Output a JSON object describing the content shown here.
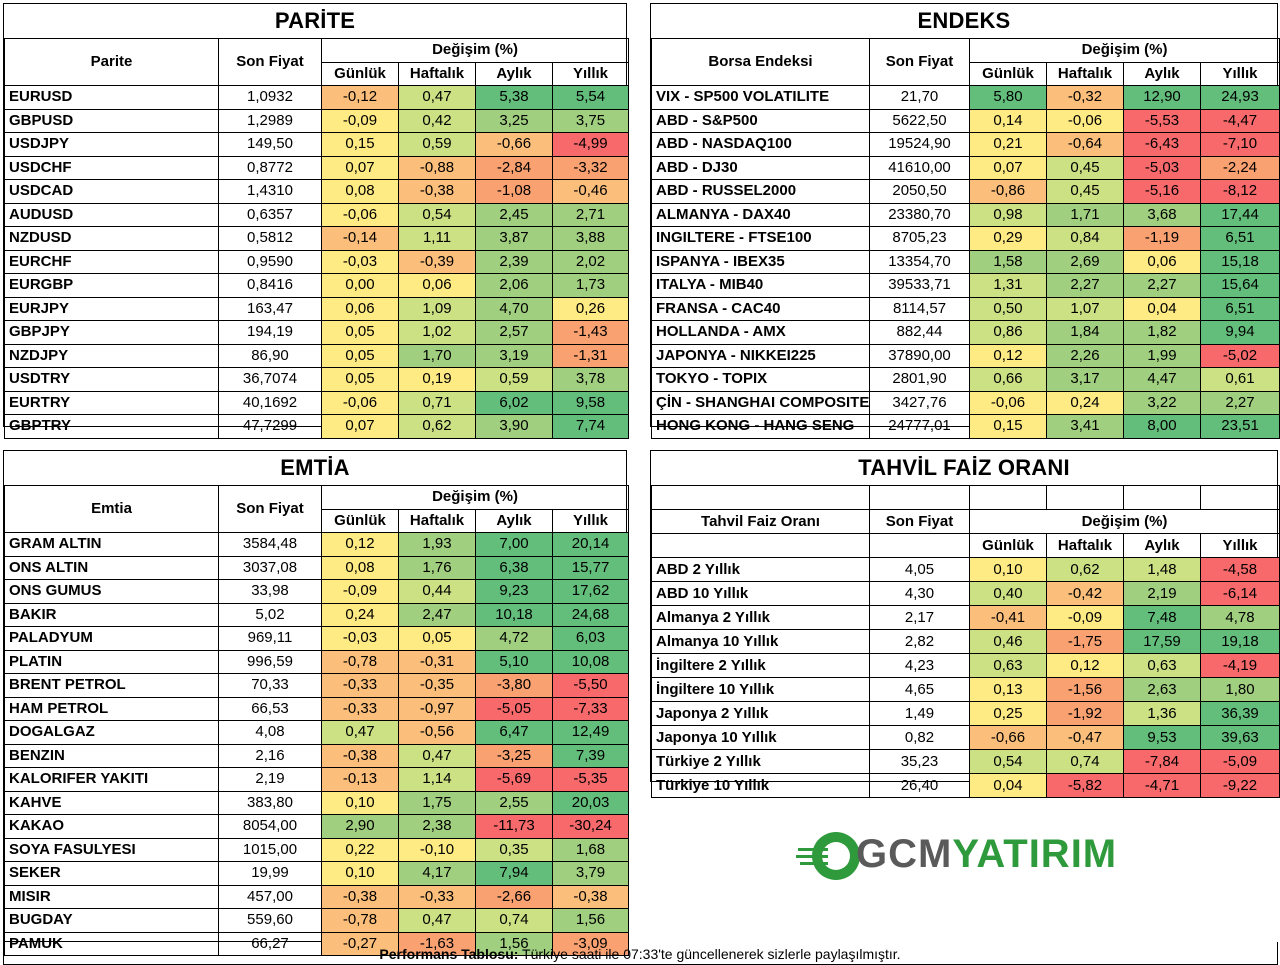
{
  "colors": {
    "deep_green": "#63be7b",
    "green": "#a0cf7f",
    "light_green": "#cce084",
    "yellow": "#ffeb84",
    "orange": "#fcbf7b",
    "orange_red": "#f9a170",
    "red": "#f8696b"
  },
  "parite": {
    "title": "PARİTE",
    "col_name": "Parite",
    "col_price": "Son Fiyat",
    "col_change": "Değişim (%)",
    "col_daily": "Günlük",
    "col_weekly": "Haftalık",
    "col_monthly": "Aylık",
    "col_yearly": "Yıllık",
    "rows": [
      {
        "name": "EURUSD",
        "price": "1,0932",
        "d": "-0,12",
        "w": "0,47",
        "m": "5,38",
        "y": "5,54"
      },
      {
        "name": "GBPUSD",
        "price": "1,2989",
        "d": "-0,09",
        "w": "0,42",
        "m": "3,25",
        "y": "3,75"
      },
      {
        "name": "USDJPY",
        "price": "149,50",
        "d": "0,15",
        "w": "0,59",
        "m": "-0,66",
        "y": "-4,99"
      },
      {
        "name": "USDCHF",
        "price": "0,8772",
        "d": "0,07",
        "w": "-0,88",
        "m": "-2,84",
        "y": "-3,32"
      },
      {
        "name": "USDCAD",
        "price": "1,4310",
        "d": "0,08",
        "w": "-0,38",
        "m": "-1,08",
        "y": "-0,46"
      },
      {
        "name": "AUDUSD",
        "price": "0,6357",
        "d": "-0,06",
        "w": "0,54",
        "m": "2,45",
        "y": "2,71"
      },
      {
        "name": "NZDUSD",
        "price": "0,5812",
        "d": "-0,14",
        "w": "1,11",
        "m": "3,87",
        "y": "3,88"
      },
      {
        "name": "EURCHF",
        "price": "0,9590",
        "d": "-0,03",
        "w": "-0,39",
        "m": "2,39",
        "y": "2,02"
      },
      {
        "name": "EURGBP",
        "price": "0,8416",
        "d": "0,00",
        "w": "0,06",
        "m": "2,06",
        "y": "1,73"
      },
      {
        "name": "EURJPY",
        "price": "163,47",
        "d": "0,06",
        "w": "1,09",
        "m": "4,70",
        "y": "0,26"
      },
      {
        "name": "GBPJPY",
        "price": "194,19",
        "d": "0,05",
        "w": "1,02",
        "m": "2,57",
        "y": "-1,43"
      },
      {
        "name": "NZDJPY",
        "price": "86,90",
        "d": "0,05",
        "w": "1,70",
        "m": "3,19",
        "y": "-1,31"
      },
      {
        "name": "USDTRY",
        "price": "36,7074",
        "d": "0,05",
        "w": "0,19",
        "m": "0,59",
        "y": "3,78"
      },
      {
        "name": "EURTRY",
        "price": "40,1692",
        "d": "-0,06",
        "w": "0,71",
        "m": "6,02",
        "y": "9,58"
      },
      {
        "name": "GBPTRY",
        "price": "47,7299",
        "d": "0,07",
        "w": "0,62",
        "m": "3,90",
        "y": "7,74"
      }
    ]
  },
  "endeks": {
    "title": "ENDEKS",
    "col_name": "Borsa Endeksi",
    "col_price": "Son Fiyat",
    "col_change": "Değişim (%)",
    "col_daily": "Günlük",
    "col_weekly": "Haftalık",
    "col_monthly": "Aylık",
    "col_yearly": "Yıllık",
    "rows": [
      {
        "name": "VIX  - SP500 VOLATILITE",
        "price": "21,70",
        "d": "5,80",
        "w": "-0,32",
        "m": "12,90",
        "y": "24,93"
      },
      {
        "name": "ABD - S&P500",
        "price": "5622,50",
        "d": "0,14",
        "w": "-0,06",
        "m": "-5,53",
        "y": "-4,47"
      },
      {
        "name": "ABD - NASDAQ100",
        "price": "19524,90",
        "d": "0,21",
        "w": "-0,64",
        "m": "-6,43",
        "y": "-7,10"
      },
      {
        "name": "ABD - DJ30",
        "price": "41610,00",
        "d": "0,07",
        "w": "0,45",
        "m": "-5,03",
        "y": "-2,24"
      },
      {
        "name": "ABD - RUSSEL2000",
        "price": "2050,50",
        "d": "-0,86",
        "w": "0,45",
        "m": "-5,16",
        "y": "-8,12"
      },
      {
        "name": "ALMANYA - DAX40",
        "price": "23380,70",
        "d": "0,98",
        "w": "1,71",
        "m": "3,68",
        "y": "17,44"
      },
      {
        "name": "INGILTERE - FTSE100",
        "price": "8705,23",
        "d": "0,29",
        "w": "0,84",
        "m": "-1,19",
        "y": "6,51"
      },
      {
        "name": "ISPANYA - IBEX35",
        "price": "13354,70",
        "d": "1,58",
        "w": "2,69",
        "m": "0,06",
        "y": "15,18"
      },
      {
        "name": "ITALYA - MIB40",
        "price": "39533,71",
        "d": "1,31",
        "w": "2,27",
        "m": "2,27",
        "y": "15,64"
      },
      {
        "name": "FRANSA - CAC40",
        "price": "8114,57",
        "d": "0,50",
        "w": "1,07",
        "m": "0,04",
        "y": "6,51"
      },
      {
        "name": "HOLLANDA - AMX",
        "price": "882,44",
        "d": "0,86",
        "w": "1,84",
        "m": "1,82",
        "y": "9,94"
      },
      {
        "name": "JAPONYA - NIKKEI225",
        "price": "37890,00",
        "d": "0,12",
        "w": "2,26",
        "m": "1,99",
        "y": "-5,02"
      },
      {
        "name": "TOKYO - TOPIX",
        "price": "2801,90",
        "d": "0,66",
        "w": "3,17",
        "m": "4,47",
        "y": "0,61"
      },
      {
        "name": "ÇİN - SHANGHAI COMPOSITE",
        "price": "3427,76",
        "d": "-0,06",
        "w": "0,24",
        "m": "3,22",
        "y": "2,27"
      },
      {
        "name": "HONG KONG - HANG SENG",
        "price": "24777,01",
        "d": "0,15",
        "w": "3,41",
        "m": "8,00",
        "y": "23,51"
      }
    ]
  },
  "emtia": {
    "title": "EMTİA",
    "col_name": "Emtia",
    "col_price": "Son Fiyat",
    "col_change": "Değişim (%)",
    "col_daily": "Günlük",
    "col_weekly": "Haftalık",
    "col_monthly": "Aylık",
    "col_yearly": "Yıllık",
    "rows": [
      {
        "name": "GRAM ALTIN",
        "price": "3584,48",
        "d": "0,12",
        "w": "1,93",
        "m": "7,00",
        "y": "20,14"
      },
      {
        "name": "ONS ALTIN",
        "price": "3037,08",
        "d": "0,08",
        "w": "1,76",
        "m": "6,38",
        "y": "15,77"
      },
      {
        "name": "ONS GUMUS",
        "price": "33,98",
        "d": "-0,09",
        "w": "0,44",
        "m": "9,23",
        "y": "17,62"
      },
      {
        "name": "BAKIR",
        "price": "5,02",
        "d": "0,24",
        "w": "2,47",
        "m": "10,18",
        "y": "24,68"
      },
      {
        "name": "PALADYUM",
        "price": "969,11",
        "d": "-0,03",
        "w": "0,05",
        "m": "4,72",
        "y": "6,03"
      },
      {
        "name": "PLATIN",
        "price": "996,59",
        "d": "-0,78",
        "w": "-0,31",
        "m": "5,10",
        "y": "10,08"
      },
      {
        "name": "BRENT PETROL",
        "price": "70,33",
        "d": "-0,33",
        "w": "-0,35",
        "m": "-3,80",
        "y": "-5,50"
      },
      {
        "name": "HAM PETROL",
        "price": "66,53",
        "d": "-0,33",
        "w": "-0,97",
        "m": "-5,05",
        "y": "-7,33"
      },
      {
        "name": "DOGALGAZ",
        "price": "4,08",
        "d": "0,47",
        "w": "-0,56",
        "m": "6,47",
        "y": "12,49"
      },
      {
        "name": "BENZIN",
        "price": "2,16",
        "d": "-0,38",
        "w": "0,47",
        "m": "-3,25",
        "y": "7,39"
      },
      {
        "name": "KALORIFER YAKITI",
        "price": "2,19",
        "d": "-0,13",
        "w": "1,14",
        "m": "-5,69",
        "y": "-5,35"
      },
      {
        "name": "KAHVE",
        "price": "383,80",
        "d": "0,10",
        "w": "1,75",
        "m": "2,55",
        "y": "20,03"
      },
      {
        "name": "KAKAO",
        "price": "8054,00",
        "d": "2,90",
        "w": "2,38",
        "m": "-11,73",
        "y": "-30,24"
      },
      {
        "name": "SOYA FASULYESI",
        "price": "1015,00",
        "d": "0,22",
        "w": "-0,10",
        "m": "0,35",
        "y": "1,68"
      },
      {
        "name": "SEKER",
        "price": "19,99",
        "d": "0,10",
        "w": "4,17",
        "m": "7,94",
        "y": "3,79"
      },
      {
        "name": "MISIR",
        "price": "457,00",
        "d": "-0,38",
        "w": "-0,33",
        "m": "-2,66",
        "y": "-0,38"
      },
      {
        "name": "BUGDAY",
        "price": "559,60",
        "d": "-0,78",
        "w": "0,47",
        "m": "0,74",
        "y": "1,56"
      },
      {
        "name": "PAMUK",
        "price": "66,27",
        "d": "-0,27",
        "w": "-1,63",
        "m": "1,56",
        "y": "-3,09"
      }
    ]
  },
  "tahvil": {
    "title": "TAHVİL FAİZ ORANI",
    "col_name": "Tahvil Faiz Oranı",
    "col_price": "Son Fiyat",
    "col_change": "Değişim (%)",
    "col_daily": "Günlük",
    "col_weekly": "Haftalık",
    "col_monthly": "Aylık",
    "col_yearly": "Yıllık",
    "rows": [
      {
        "name": "ABD 2 Yıllık",
        "price": "4,05",
        "d": "0,10",
        "w": "0,62",
        "m": "1,48",
        "y": "-4,58"
      },
      {
        "name": "ABD 10 Yıllık",
        "price": "4,30",
        "d": "0,40",
        "w": "-0,42",
        "m": "2,19",
        "y": "-6,14"
      },
      {
        "name": "Almanya 2 Yıllık",
        "price": "2,17",
        "d": "-0,41",
        "w": "-0,09",
        "m": "7,48",
        "y": "4,78"
      },
      {
        "name": "Almanya 10 Yıllık",
        "price": "2,82",
        "d": "0,46",
        "w": "-1,75",
        "m": "17,59",
        "y": "19,18"
      },
      {
        "name": "İngiltere 2 Yıllık",
        "price": "4,23",
        "d": "0,63",
        "w": "0,12",
        "m": "0,63",
        "y": "-4,19"
      },
      {
        "name": "İngiltere 10 Yıllık",
        "price": "4,65",
        "d": "0,13",
        "w": "-1,56",
        "m": "2,63",
        "y": "1,80"
      },
      {
        "name": "Japonya 2 Yıllık",
        "price": "1,49",
        "d": "0,25",
        "w": "-1,92",
        "m": "1,36",
        "y": "36,39"
      },
      {
        "name": "Japonya 10 Yıllık",
        "price": "0,82",
        "d": "-0,66",
        "w": "-0,47",
        "m": "9,53",
        "y": "39,63"
      },
      {
        "name": "Türkiye 2 Yıllık",
        "price": "35,23",
        "d": "0,54",
        "w": "0,74",
        "m": "-7,84",
        "y": "-5,09"
      },
      {
        "name": "Türkiye 10 Yıllık",
        "price": "26,40",
        "d": "0,04",
        "w": "-5,82",
        "m": "-4,71",
        "y": "-9,22"
      }
    ]
  },
  "logo": {
    "part1": "GCM",
    "part2": "YATIRIM"
  },
  "footer": {
    "bold": "Performans Tablosu:",
    "text": " Türkiye saati ile 07:33'te güncellenerek sizlerle paylaşılmıştır."
  }
}
